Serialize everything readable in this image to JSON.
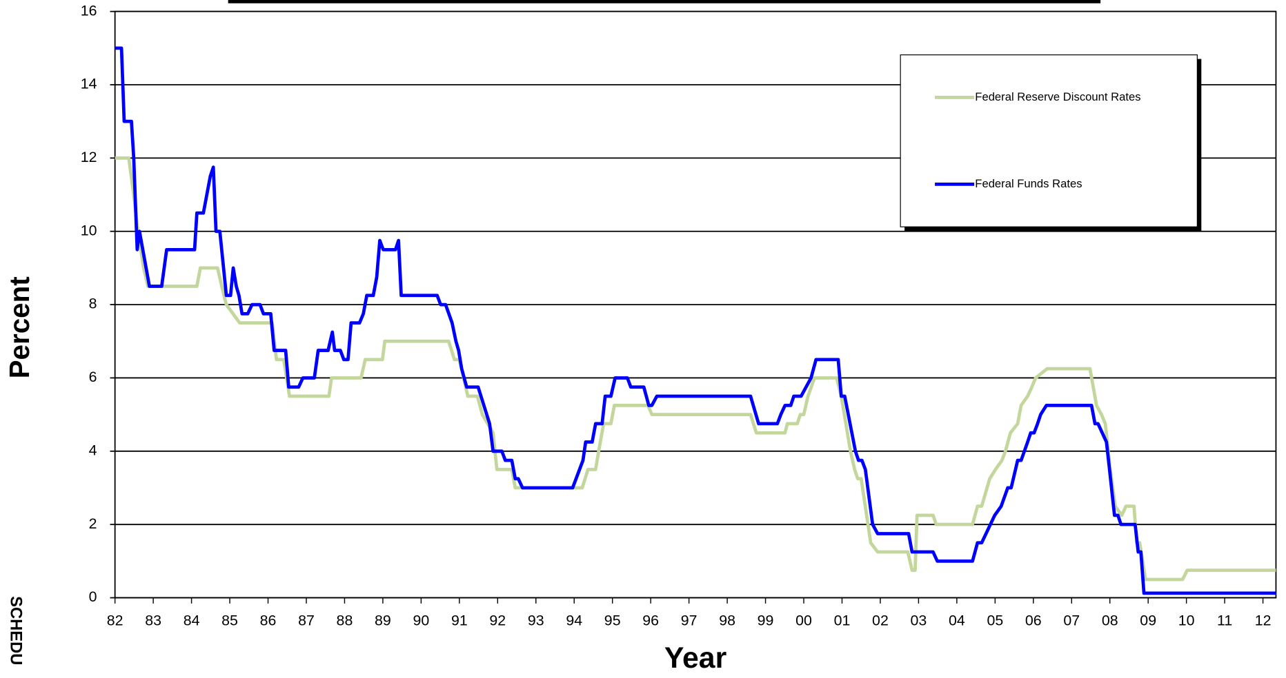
{
  "chart_data": {
    "type": "line",
    "side_text": "SCHEDU",
    "x_label": "Year",
    "y_label": "Percent",
    "xlim": [
      1982,
      2012.34
    ],
    "ylim": [
      0,
      16
    ],
    "yticks": [
      0,
      2,
      4,
      6,
      8,
      10,
      12,
      14,
      16
    ],
    "xticks": [
      {
        "value": 1982,
        "label": "82"
      },
      {
        "value": 1983,
        "label": "83"
      },
      {
        "value": 1984,
        "label": "84"
      },
      {
        "value": 1985,
        "label": "85"
      },
      {
        "value": 1986,
        "label": "86"
      },
      {
        "value": 1987,
        "label": "87"
      },
      {
        "value": 1988,
        "label": "88"
      },
      {
        "value": 1989,
        "label": "89"
      },
      {
        "value": 1990,
        "label": "90"
      },
      {
        "value": 1991,
        "label": "91"
      },
      {
        "value": 1992,
        "label": "92"
      },
      {
        "value": 1993,
        "label": "93"
      },
      {
        "value": 1994,
        "label": "94"
      },
      {
        "value": 1995,
        "label": "95"
      },
      {
        "value": 1996,
        "label": "96"
      },
      {
        "value": 1997,
        "label": "97"
      },
      {
        "value": 1998,
        "label": "98"
      },
      {
        "value": 1999,
        "label": "99"
      },
      {
        "value": 2000,
        "label": "00"
      },
      {
        "value": 2001,
        "label": "01"
      },
      {
        "value": 2002,
        "label": "02"
      },
      {
        "value": 2003,
        "label": "03"
      },
      {
        "value": 2004,
        "label": "04"
      },
      {
        "value": 2005,
        "label": "05"
      },
      {
        "value": 2006,
        "label": "06"
      },
      {
        "value": 2007,
        "label": "07"
      },
      {
        "value": 2008,
        "label": "08"
      },
      {
        "value": 2009,
        "label": "09"
      },
      {
        "value": 2010,
        "label": "10"
      },
      {
        "value": 2011,
        "label": "11"
      },
      {
        "value": 2012,
        "label": "12"
      }
    ],
    "grid": true,
    "legend": "top-right",
    "series": [
      {
        "name": "Federal Reserve Discount Rates",
        "color": "#c3d69b",
        "x": [
          1982,
          1982.36,
          1982.49,
          1982.6,
          1982.75,
          1982.86,
          1984.14,
          1984.23,
          1984.68,
          1984.79,
          1984.91,
          1985.26,
          1986.11,
          1986.22,
          1986.41,
          1986.56,
          1987.59,
          1987.66,
          1988.43,
          1988.54,
          1988.99,
          1989.05,
          1990.72,
          1990.87,
          1991,
          1991.11,
          1991.22,
          1991.47,
          1991.6,
          1991.88,
          1991.98,
          1992.37,
          1992.46,
          1994.21,
          1994.36,
          1994.56,
          1994.64,
          1994.77,
          1994.96,
          1995.05,
          1995.93,
          1996.03,
          1998.61,
          1998.76,
          1999.51,
          1999.57,
          1999.83,
          1999.91,
          2000,
          2000.11,
          2000.28,
          2000.86,
          2000.98,
          2001.22,
          2001.33,
          2001.41,
          2001.5,
          2001.75,
          2001.93,
          2002.72,
          2002.83,
          2002.91,
          2002.96,
          2003.38,
          2003.46,
          2004.41,
          2004.54,
          2004.65,
          2004.86,
          2005.01,
          2005.18,
          2005.27,
          2005.4,
          2005.59,
          2005.68,
          2005.85,
          2005.96,
          2006.06,
          2006.36,
          2007.48,
          2007.65,
          2007.78,
          2007.88,
          2008.01,
          2008.14,
          2008.31,
          2008.42,
          2008.63,
          2008.7,
          2008.78,
          2008.93,
          2009.9,
          2010.02,
          2012.34
        ],
        "values": [
          12,
          12,
          11,
          10,
          9,
          8.5,
          8.5,
          9,
          9,
          8.5,
          8,
          7.5,
          7.5,
          6.5,
          6.5,
          5.5,
          5.5,
          6,
          6,
          6.5,
          6.5,
          7,
          7,
          6.5,
          6.5,
          6,
          5.5,
          5.5,
          5,
          4.5,
          3.5,
          3.5,
          3,
          3,
          3.5,
          3.5,
          4,
          4.75,
          4.75,
          5.25,
          5.25,
          5,
          5,
          4.5,
          4.5,
          4.75,
          4.75,
          5,
          5,
          5.5,
          6,
          6,
          5.5,
          4,
          3.5,
          3.25,
          3.25,
          1.5,
          1.25,
          1.25,
          0.75,
          0.75,
          2.25,
          2.25,
          2,
          2,
          2.5,
          2.5,
          3.25,
          3.5,
          3.75,
          4,
          4.5,
          4.75,
          5.25,
          5.5,
          5.75,
          6,
          6.25,
          6.25,
          5.25,
          5,
          4.75,
          3.5,
          2.5,
          2.25,
          2.5,
          2.5,
          1.5,
          1.5,
          0.5,
          0.5,
          0.75,
          0.75
        ]
      },
      {
        "name": "Federal Funds Rates",
        "color": "#0000ff",
        "x": [
          1982,
          1982.17,
          1982.24,
          1982.43,
          1982.49,
          1982.58,
          1982.64,
          1982.9,
          1983.22,
          1983.35,
          1984.08,
          1984.14,
          1984.31,
          1984.49,
          1984.57,
          1984.64,
          1984.74,
          1984.91,
          1985.02,
          1985.09,
          1985.17,
          1985.24,
          1985.32,
          1985.47,
          1985.58,
          1985.79,
          1985.88,
          1986.07,
          1986.16,
          1986.46,
          1986.54,
          1986.8,
          1986.91,
          1987.21,
          1987.31,
          1987.57,
          1987.68,
          1987.74,
          1987.89,
          1987.98,
          1988.09,
          1988.17,
          1988.39,
          1988.49,
          1988.58,
          1988.75,
          1988.84,
          1988.92,
          1989.01,
          1989.33,
          1989.41,
          1989.48,
          1990.42,
          1990.51,
          1990.64,
          1990.81,
          1990.91,
          1990.98,
          1991.06,
          1991.19,
          1991.49,
          1991.79,
          1991.88,
          1992.11,
          1992.2,
          1992.37,
          1992.46,
          1992.54,
          1992.65,
          1993.96,
          1994.23,
          1994.3,
          1994.47,
          1994.56,
          1994.73,
          1994.81,
          1994.96,
          1995.07,
          1995.39,
          1995.48,
          1995.82,
          1995.95,
          1996.03,
          1996.16,
          1998.61,
          1998.82,
          1999.31,
          1999.4,
          1999.51,
          1999.66,
          1999.74,
          1999.93,
          2000.19,
          2000.32,
          2000.9,
          2000.98,
          2001.07,
          2001.35,
          2001.43,
          2001.52,
          2001.61,
          2001.8,
          2001.93,
          2002.74,
          2002.83,
          2003.38,
          2003.49,
          2004.41,
          2004.54,
          2004.65,
          2004.99,
          2005.16,
          2005.33,
          2005.42,
          2005.59,
          2005.68,
          2005.85,
          2005.93,
          2006.02,
          2006.11,
          2006.19,
          2006.34,
          2007.52,
          2007.61,
          2007.69,
          2007.91,
          2007.99,
          2008.12,
          2008.21,
          2008.29,
          2008.66,
          2008.74,
          2008.81,
          2008.89,
          2012.34
        ],
        "values": [
          15,
          15,
          13,
          13,
          12,
          9.5,
          10,
          8.5,
          8.5,
          9.5,
          9.5,
          10.5,
          10.5,
          11.5,
          11.75,
          10,
          10,
          8.25,
          8.25,
          9,
          8.5,
          8.25,
          7.75,
          7.75,
          8,
          8,
          7.75,
          7.75,
          6.75,
          6.75,
          5.75,
          5.75,
          6,
          6,
          6.75,
          6.75,
          7.25,
          6.75,
          6.75,
          6.5,
          6.5,
          7.5,
          7.5,
          7.75,
          8.25,
          8.25,
          8.75,
          9.75,
          9.5,
          9.5,
          9.75,
          8.25,
          8.25,
          8,
          8,
          7.5,
          7,
          6.75,
          6.25,
          5.75,
          5.75,
          4.75,
          4,
          4,
          3.75,
          3.75,
          3.25,
          3.25,
          3,
          3,
          3.75,
          4.25,
          4.25,
          4.75,
          4.75,
          5.5,
          5.5,
          6,
          6,
          5.75,
          5.75,
          5.25,
          5.25,
          5.5,
          5.5,
          4.75,
          4.75,
          5,
          5.25,
          5.25,
          5.5,
          5.5,
          6,
          6.5,
          6.5,
          5.5,
          5.5,
          4,
          3.75,
          3.75,
          3.5,
          2,
          1.75,
          1.75,
          1.25,
          1.25,
          1,
          1,
          1.5,
          1.5,
          2.25,
          2.5,
          3,
          3,
          3.75,
          3.75,
          4.25,
          4.5,
          4.5,
          4.75,
          5,
          5.25,
          5.25,
          4.75,
          4.75,
          4.25,
          3.5,
          2.25,
          2.25,
          2,
          2,
          1.25,
          1.25,
          0.125,
          0.125
        ]
      }
    ]
  }
}
